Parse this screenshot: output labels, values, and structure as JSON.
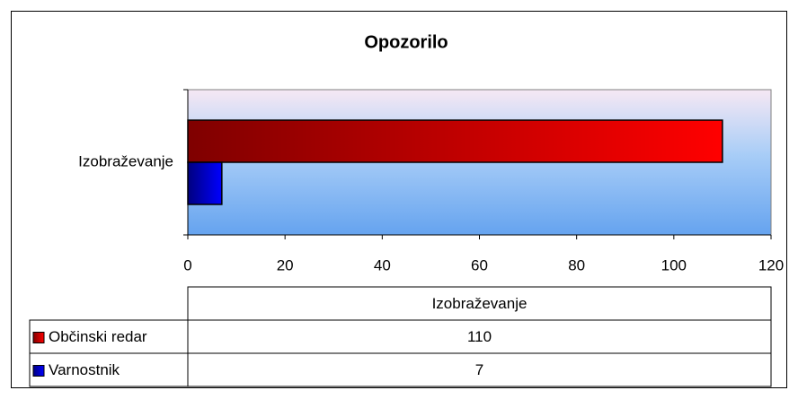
{
  "chart_data": {
    "type": "bar",
    "orientation": "horizontal",
    "title": "Opozorilo",
    "categories": [
      "Izobraževanje"
    ],
    "series": [
      {
        "name": "Občinski redar",
        "color": "#ff0000",
        "values": [
          110
        ]
      },
      {
        "name": "Varnostnik",
        "color": "#0000ff",
        "values": [
          7
        ]
      }
    ],
    "xlim": [
      0,
      120
    ],
    "xticks": [
      0,
      20,
      40,
      60,
      80,
      100,
      120
    ],
    "data_table": true
  }
}
